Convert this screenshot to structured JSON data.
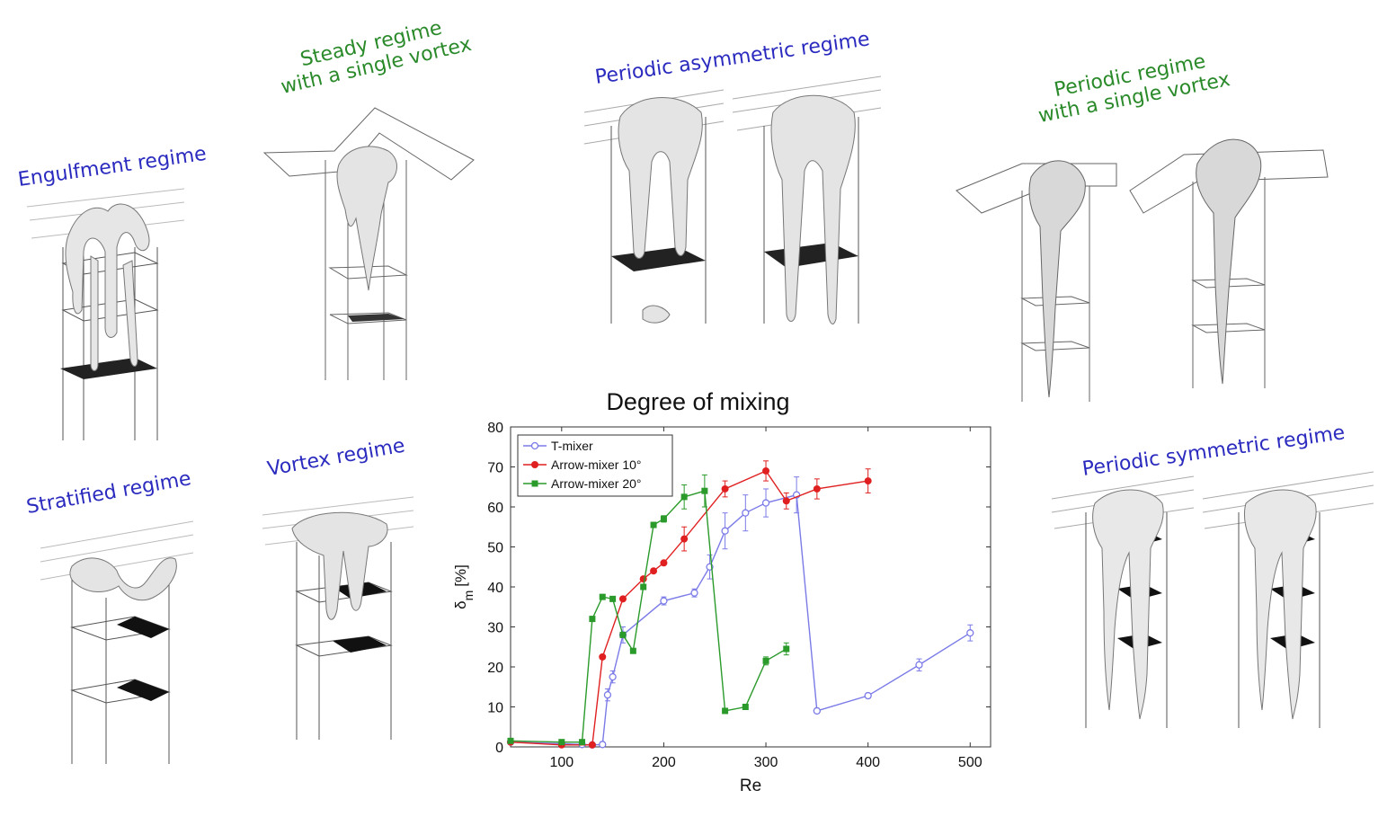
{
  "figure": {
    "regimes": {
      "engulfment": {
        "label": "Engulfment regime",
        "color": "#2b2bbf"
      },
      "steady": {
        "lines": [
          "Steady regime",
          "with a single vortex"
        ],
        "color": "#2a8a2a"
      },
      "periodic_asym": {
        "label": "Periodic asymmetric regime",
        "color": "#2b2bbf"
      },
      "periodic_single": {
        "lines": [
          "Periodic regime",
          "with a single vortex"
        ],
        "color": "#2a8a2a"
      },
      "stratified": {
        "label": "Stratified regime",
        "color": "#2b2bbf"
      },
      "vortex": {
        "label": "Vortex regime",
        "color": "#2b2bbf"
      },
      "periodic_sym": {
        "label": "Periodic symmetric regime",
        "color": "#2b2bbf"
      }
    }
  },
  "chart_data": {
    "type": "line",
    "title": "Degree of mixing",
    "xlabel": "Re",
    "ylabel_main": "δ",
    "ylabel_sub": "m",
    "ylabel_unit": "[%]",
    "xlim": [
      50,
      520
    ],
    "ylim": [
      0,
      80
    ],
    "xticks": [
      100,
      200,
      300,
      400,
      500
    ],
    "yticks": [
      0,
      10,
      20,
      30,
      40,
      50,
      60,
      70,
      80
    ],
    "grid": false,
    "legend_position": "top-left",
    "series": [
      {
        "name": "T-mixer",
        "color": "#7b7be8",
        "marker": "open-circle",
        "x": [
          50,
          100,
          120,
          130,
          140,
          145,
          150,
          160,
          200,
          230,
          245,
          260,
          280,
          300,
          330,
          350,
          400,
          450,
          500
        ],
        "y": [
          1.2,
          0.8,
          0.6,
          0.5,
          0.6,
          13,
          17.5,
          28,
          36.5,
          38.5,
          45,
          54,
          58.5,
          61,
          63,
          9,
          12.8,
          20.5,
          28.5
        ],
        "err": [
          0,
          0,
          0,
          0,
          0,
          1.5,
          1.5,
          2,
          1,
          1,
          3,
          4.5,
          4.5,
          3.5,
          4.5,
          0.6,
          0.6,
          1.5,
          2
        ]
      },
      {
        "name": "Arrow-mixer 10°",
        "color": "#e02020",
        "marker": "filled-circle",
        "x": [
          50,
          100,
          130,
          140,
          160,
          180,
          190,
          200,
          220,
          260,
          300,
          320,
          350,
          400
        ],
        "y": [
          1.2,
          0.5,
          0.5,
          22.5,
          37,
          42,
          44,
          46,
          52,
          64.5,
          69,
          61.5,
          64.5,
          66.5
        ],
        "err": [
          0,
          0,
          0,
          0,
          0,
          0,
          0,
          0,
          3,
          2,
          2.5,
          2,
          2.5,
          3
        ]
      },
      {
        "name": "Arrow-mixer 20°",
        "color": "#2a9a2a",
        "marker": "filled-square",
        "x": [
          50,
          100,
          120,
          130,
          140,
          150,
          160,
          170,
          180,
          190,
          200,
          220,
          240,
          260,
          280,
          300,
          320
        ],
        "y": [
          1.5,
          1.2,
          1.2,
          32,
          37.5,
          37,
          28,
          24,
          40,
          55.5,
          57,
          62.5,
          64,
          9,
          10,
          21.5,
          24.5
        ],
        "err": [
          0,
          0,
          0,
          0,
          0,
          0,
          0,
          0,
          0,
          0,
          0.8,
          3,
          4,
          0.5,
          0.5,
          1,
          1.5
        ]
      }
    ]
  }
}
